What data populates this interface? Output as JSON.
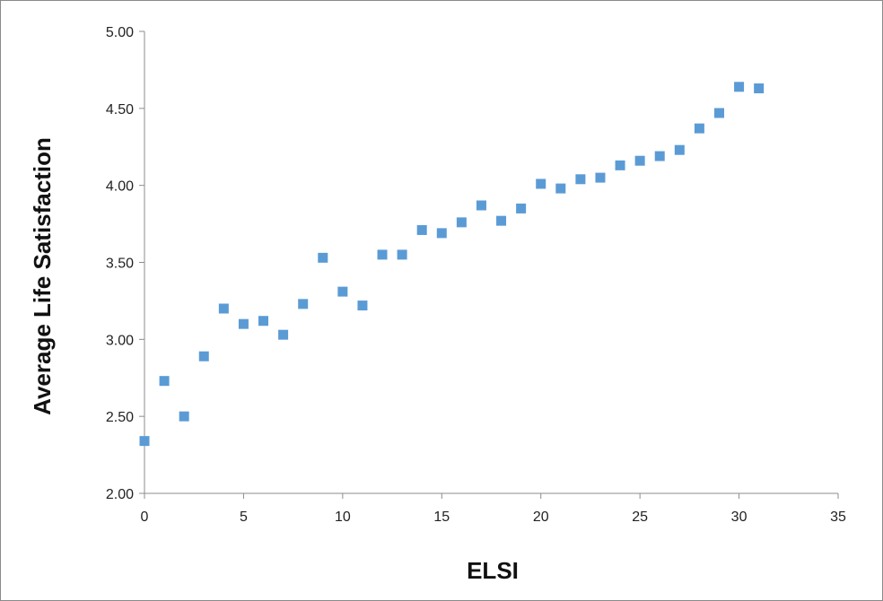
{
  "chart_data": {
    "type": "scatter",
    "title": "",
    "xlabel": "ELSI",
    "ylabel": "Average Life Satisfaction",
    "xlim": [
      0,
      35
    ],
    "ylim": [
      2.0,
      5.0
    ],
    "x_ticks": [
      "0",
      "5",
      "10",
      "15",
      "20",
      "25",
      "30",
      "35"
    ],
    "y_ticks": [
      "2.00",
      "2.50",
      "3.00",
      "3.50",
      "4.00",
      "4.50",
      "5.00"
    ],
    "grid": false,
    "legend": "none",
    "marker": "square",
    "marker_color": "#5B9BD5",
    "series": [
      {
        "x": [
          0,
          1,
          2,
          3,
          4,
          5,
          6,
          7,
          8,
          9,
          10,
          11,
          12,
          13,
          14,
          15,
          16,
          17,
          18,
          19,
          20,
          21,
          22,
          23,
          24,
          25,
          26,
          27,
          28,
          29,
          30,
          31
        ],
        "y": [
          2.34,
          2.73,
          2.5,
          2.89,
          3.2,
          3.1,
          3.12,
          3.03,
          3.23,
          3.53,
          3.31,
          3.22,
          3.55,
          3.55,
          3.71,
          3.69,
          3.76,
          3.87,
          3.77,
          3.85,
          4.01,
          3.98,
          4.04,
          4.05,
          4.13,
          4.16,
          4.19,
          4.23,
          4.37,
          4.47,
          4.64,
          4.63
        ]
      }
    ]
  }
}
